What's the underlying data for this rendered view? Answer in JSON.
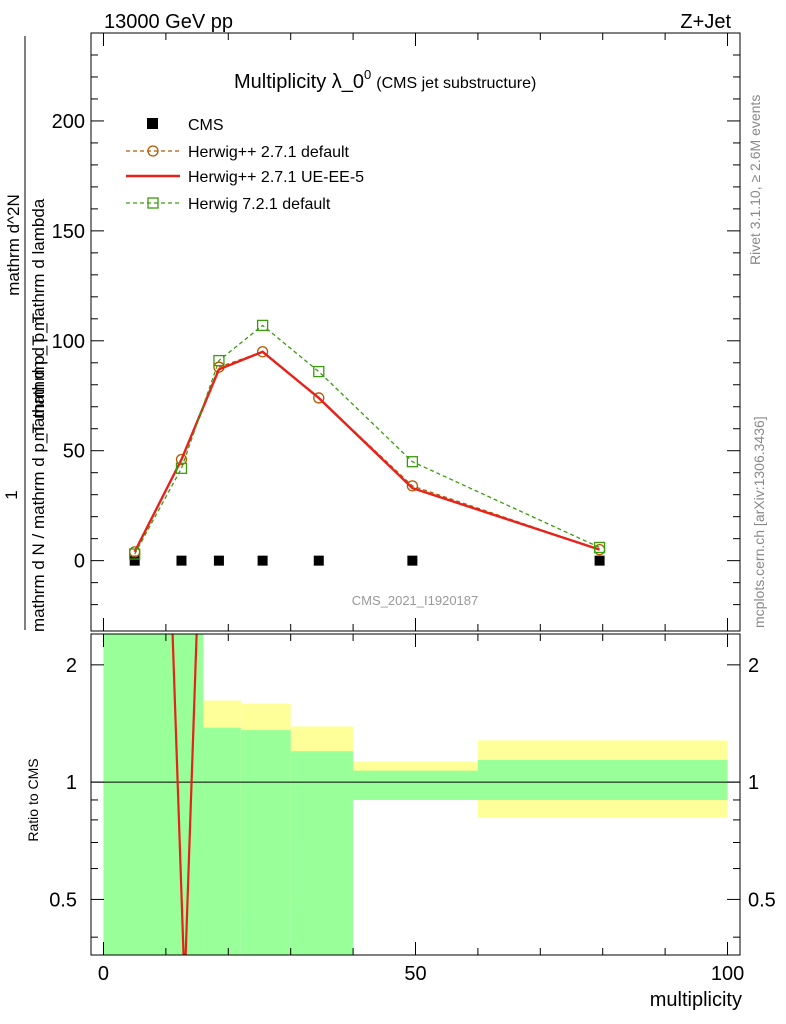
{
  "header": {
    "energy_label": "13000 GeV pp",
    "process_label": "Z+Jet"
  },
  "side_labels": {
    "rivet": "Rivet 3.1.10, ≥ 2.6M events",
    "mcplots": "mcplots.cern.ch [arXiv:1306.3436]"
  },
  "watermark": "CMS_2021_I1920187",
  "chart_data": [
    {
      "type": "line",
      "title": "Multiplicity λ_0",
      "title_sup": "0",
      "subtitle": "(CMS jet substructure)",
      "ylabel_num": "1",
      "ylabel_den": "mathrm d N / mathrm d p_T mathrm d p_T",
      "ylabel_main": "mathrm d^2N",
      "ylabel_main2": "mathrm d p_T mathrm d lambda",
      "xlim": [
        -2,
        102
      ],
      "ylim": [
        -32,
        240
      ],
      "yticks": [
        0,
        50,
        100,
        150,
        200
      ],
      "ytick_labels": [
        "0",
        "50",
        "100",
        "150",
        "200"
      ],
      "grid": false,
      "legend_position": "top-left",
      "series": [
        {
          "name": "CMS",
          "style": "marker-square",
          "color": "#000000",
          "x": [
            5,
            12.5,
            18.5,
            25.5,
            34.5,
            49.5,
            79.5
          ],
          "y": [
            0,
            0,
            0,
            0,
            0,
            0,
            0
          ]
        },
        {
          "name": "Herwig++ 2.7.1 default",
          "style": "dashed-circle",
          "color": "#b35900",
          "x": [
            5,
            12.5,
            18.5,
            25.5,
            34.5,
            49.5,
            79.5
          ],
          "y": [
            4,
            46,
            88,
            95,
            74,
            34,
            5
          ]
        },
        {
          "name": "Herwig++ 2.7.1 UE-EE-5",
          "style": "solid",
          "color": "#e8211a",
          "x": [
            5,
            12.5,
            18.5,
            25.5,
            34.5,
            49.5,
            79.5
          ],
          "y": [
            4,
            46,
            87,
            95,
            74,
            33,
            5
          ]
        },
        {
          "name": "Herwig 7.2.1 default",
          "style": "dashed-square",
          "color": "#3a9c0c",
          "x": [
            5,
            12.5,
            18.5,
            25.5,
            34.5,
            49.5,
            79.5
          ],
          "y": [
            3,
            42,
            91,
            107,
            86,
            45,
            6
          ]
        }
      ]
    },
    {
      "type": "area",
      "ylabel": "Ratio to CMS",
      "xlabel": "multiplicity",
      "xlim": [
        -2,
        102
      ],
      "ylim": [
        0.36,
        2.4
      ],
      "log_y": true,
      "xticks": [
        0,
        50,
        100
      ],
      "xtick_labels": [
        "0",
        "50",
        "100"
      ],
      "yticks": [
        0.5,
        1,
        2
      ],
      "ytick_labels": [
        "0.5",
        "1",
        "2"
      ],
      "bands": {
        "edges": [
          0,
          16,
          22,
          30,
          40,
          60,
          100
        ],
        "green_low": [
          0.3,
          0.3,
          0.3,
          0.3,
          0.9,
          0.9
        ],
        "green_high": [
          2.6,
          1.38,
          1.36,
          1.2,
          1.07,
          1.14
        ],
        "yellow_low": [
          0.3,
          0.44,
          0.49,
          0.73,
          0.9,
          0.81
        ],
        "yellow_high": [
          2.6,
          1.62,
          1.59,
          1.39,
          1.13,
          1.28
        ]
      },
      "series": [
        {
          "name": "Herwig++ 2.7.1 default",
          "color": "#b35900",
          "x": [
            11,
            13,
            15
          ],
          "y": [
            2.6,
            0.3,
            2.6
          ]
        },
        {
          "name": "Herwig++ 2.7.1 UE-EE-5",
          "color": "#e8211a",
          "x": [
            11,
            13,
            15
          ],
          "y": [
            2.6,
            0.3,
            2.6
          ]
        }
      ]
    }
  ]
}
